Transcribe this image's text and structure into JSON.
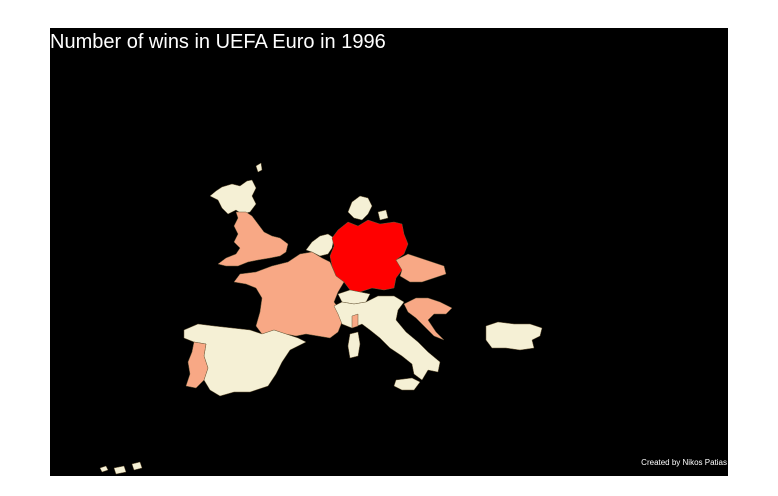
{
  "title": "Number of wins in UEFA Euro in 1996",
  "caption": "Created by Nikos Patias",
  "colors": {
    "background": "#000000",
    "wins_0": "#f5f0d5",
    "wins_low": "#f8a885",
    "wins_high": "#ff0000",
    "border": "#6b5a3a"
  },
  "countries": [
    {
      "name": "Germany",
      "fill": "wins_high"
    },
    {
      "name": "England",
      "fill": "wins_low"
    },
    {
      "name": "France",
      "fill": "wins_low"
    },
    {
      "name": "Portugal",
      "fill": "wins_low"
    },
    {
      "name": "Czech Republic",
      "fill": "wins_low"
    },
    {
      "name": "Croatia",
      "fill": "wins_low"
    },
    {
      "name": "Netherlands",
      "fill": "wins_0"
    },
    {
      "name": "Scotland",
      "fill": "wins_0"
    },
    {
      "name": "Denmark",
      "fill": "wins_0"
    },
    {
      "name": "Spain",
      "fill": "wins_0"
    },
    {
      "name": "Italy",
      "fill": "wins_0"
    },
    {
      "name": "Switzerland",
      "fill": "wins_0"
    },
    {
      "name": "Bulgaria",
      "fill": "wins_0"
    },
    {
      "name": "Romania",
      "fill": "wins_0"
    },
    {
      "name": "Turkey",
      "fill": "wins_0"
    },
    {
      "name": "Russia",
      "fill": "wins_0"
    }
  ]
}
